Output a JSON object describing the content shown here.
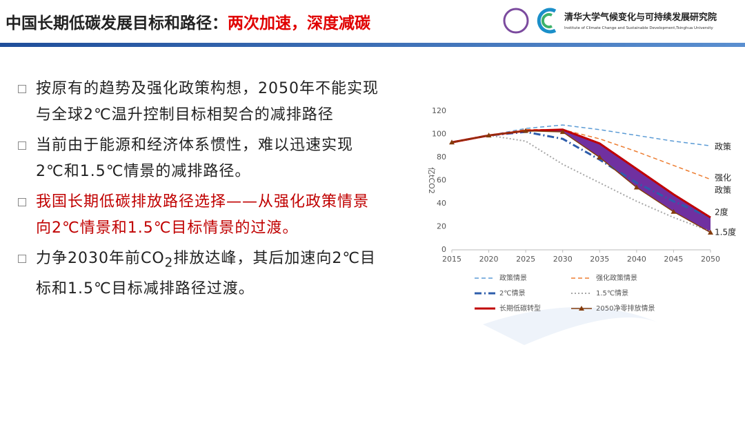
{
  "header": {
    "title": "中国长期低碳发展目标和路径：",
    "title_highlight": "两次加速，深度减碳",
    "org_name": "清华大学气候变化与可持续发展研究院",
    "org_name_en": "Institute of Climate Change and Sustainable Development,Tsinghua University"
  },
  "bullets": [
    {
      "text": "按原有的趋势及强化政策构想，2050年不能实现与全球2℃温升控制目标相契合的减排路径"
    },
    {
      "text": "当前由于能源和经济体系惯性，难以迅速实现2℃和1.5℃情景的减排路径。"
    },
    {
      "text": "我国长期低碳排放路径选择——从强化政策情景向2℃情景和1.5℃目标情景的过渡。",
      "color": "#c00000"
    },
    {
      "parts": [
        "力争2030年前CO",
        "2",
        "排放达峰，其后加速向2℃目标和1.5℃目标减排路径过渡。"
      ]
    }
  ],
  "chart_data": {
    "type": "line",
    "y_label": "亿tCO2",
    "x": [
      2015,
      2020,
      2025,
      2030,
      2035,
      2040,
      2045,
      2050
    ],
    "xlim": [
      2015,
      2050
    ],
    "xticks": [
      2015,
      2020,
      2025,
      2030,
      2035,
      2040,
      2045,
      2050
    ],
    "ylim": [
      0,
      120
    ],
    "yticks": [
      0,
      20,
      40,
      60,
      80,
      100,
      120
    ],
    "series": [
      {
        "name": "政策情景",
        "color": "#5b9bd5",
        "style": "dashed",
        "values": [
          93,
          99,
          105,
          108,
          104,
          99,
          94,
          90
        ]
      },
      {
        "name": "强化政策情景",
        "color": "#ed7d31",
        "style": "dashed",
        "values": [
          93,
          99,
          104,
          104,
          96,
          85,
          73,
          61
        ]
      },
      {
        "name": "2℃情景",
        "color": "#2e5dab",
        "style": "dashdot",
        "values": [
          93,
          99,
          102,
          96,
          78,
          58,
          42,
          28
        ]
      },
      {
        "name": "1.5℃情景",
        "color": "#a5a5a5",
        "style": "dotted",
        "values": [
          93,
          99,
          94,
          74,
          58,
          42,
          28,
          16
        ]
      },
      {
        "name": "长期低碳转型",
        "color": "#c00000",
        "style": "solid",
        "values": [
          93,
          99,
          103,
          104,
          92,
          70,
          48,
          28
        ]
      },
      {
        "name": "2050净零排放情景",
        "color": "#843c0c",
        "style": "solid",
        "marker": "triangle",
        "values": [
          93,
          99,
          103,
          102,
          80,
          54,
          33,
          15
        ]
      }
    ],
    "band_fill": "#7030a0",
    "end_labels": [
      "政策",
      "强化",
      "政策",
      "2度",
      "1.5度"
    ]
  }
}
